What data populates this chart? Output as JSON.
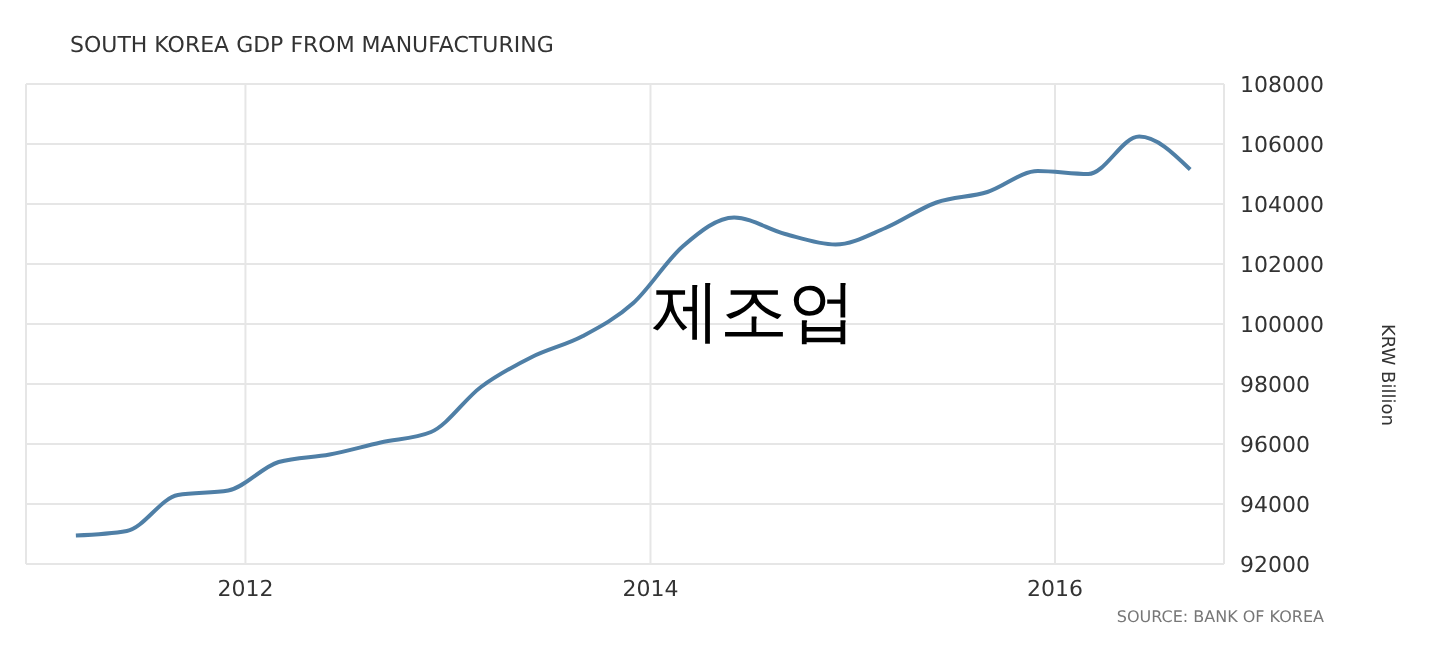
{
  "chart_data": {
    "type": "line",
    "title": "SOUTH KOREA GDP FROM MANUFACTURING",
    "ylabel": "KRW Billion",
    "annotations": [
      "제조업",
      "SOURCE: BANK OF KOREA"
    ],
    "x": [
      "2011-03",
      "2011-06",
      "2011-09",
      "2011-12",
      "2012-03",
      "2012-06",
      "2012-09",
      "2012-12",
      "2013-03",
      "2013-06",
      "2013-09",
      "2013-12",
      "2014-03",
      "2014-06",
      "2014-09",
      "2014-12",
      "2015-03",
      "2015-06",
      "2015-09",
      "2015-12",
      "2016-03",
      "2016-06",
      "2016-09"
    ],
    "series": [
      {
        "color": "#4f7fa6",
        "values": [
          92950,
          93100,
          94300,
          94450,
          95400,
          95650,
          96050,
          96400,
          97900,
          98900,
          99600,
          100700,
          102600,
          103550,
          103000,
          102650,
          103200,
          104050,
          104400,
          105100,
          105000,
          106250,
          105150
        ]
      }
    ],
    "xlim": [
      "2010-12",
      "2016-11"
    ],
    "xticks": [
      "2012",
      "2014",
      "2016"
    ],
    "ylim": [
      92000,
      108000
    ],
    "yticks": [
      92000,
      94000,
      96000,
      98000,
      100000,
      102000,
      104000,
      106000,
      108000
    ],
    "grid": true,
    "marker": "none",
    "line_style": "solid"
  }
}
